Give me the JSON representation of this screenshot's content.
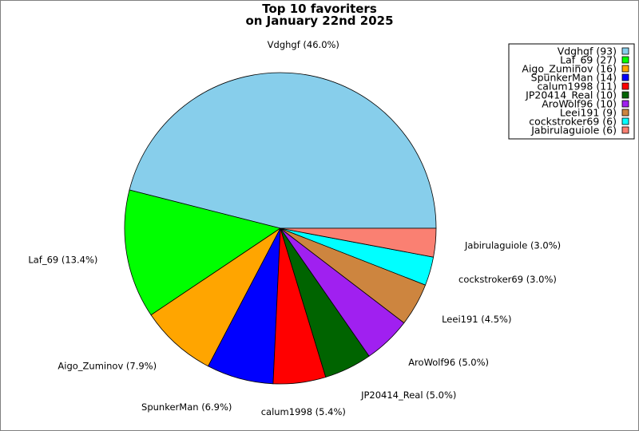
{
  "chart_data": {
    "type": "pie",
    "title": [
      "Top 10 favoriters",
      "on January 22nd 2025"
    ],
    "slices": [
      {
        "name": "Vdghgf",
        "value": 93,
        "percent": "46.0%",
        "color": "#87CEEB"
      },
      {
        "name": "Laf_69",
        "value": 27,
        "percent": "13.4%",
        "color": "#00FF00"
      },
      {
        "name": "Aigo_Zuminov",
        "value": 16,
        "percent": "7.9%",
        "color": "#FFA500"
      },
      {
        "name": "SpunkerMan",
        "value": 14,
        "percent": "6.9%",
        "color": "#0000FF"
      },
      {
        "name": "calum1998",
        "value": 11,
        "percent": "5.4%",
        "color": "#FF0000"
      },
      {
        "name": "JP20414_Real",
        "value": 10,
        "percent": "5.0%",
        "color": "#006400"
      },
      {
        "name": "AroWolf96",
        "value": 10,
        "percent": "5.0%",
        "color": "#A020F0"
      },
      {
        "name": "Leei191",
        "value": 9,
        "percent": "4.5%",
        "color": "#CD853F"
      },
      {
        "name": "cockstroker69",
        "value": 6,
        "percent": "3.0%",
        "color": "#00FFFF"
      },
      {
        "name": "Jabirulaguiole",
        "value": 6,
        "percent": "3.0%",
        "color": "#FA8072"
      }
    ],
    "legend_position": "top-right"
  }
}
